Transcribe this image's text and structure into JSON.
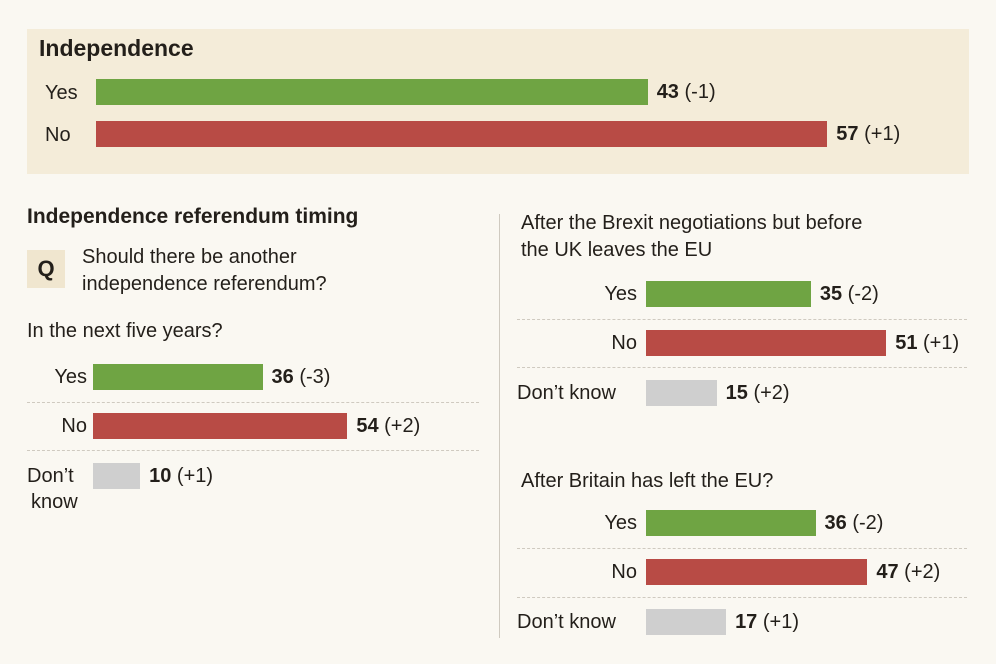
{
  "colors": {
    "yes": "#6fa443",
    "no": "#b84b45",
    "dont_know": "#cfcfcf"
  },
  "independence": {
    "title": "Independence",
    "rows": [
      {
        "label": "Yes",
        "value": 43,
        "change": "(-1)",
        "color": "yes"
      },
      {
        "label": "No",
        "value": 57,
        "change": "(+1)",
        "color": "no"
      }
    ]
  },
  "timing": {
    "title": "Independence referendum timing",
    "q_badge": "Q",
    "question_line1": "Should there be another",
    "question_line2": "independence referendum?"
  },
  "chart_data": [
    {
      "type": "bar",
      "title": "Independence",
      "categories": [
        "Yes",
        "No"
      ],
      "values": [
        43,
        57
      ],
      "changes": [
        "(-1)",
        "(+1)"
      ]
    },
    {
      "type": "bar",
      "title": "In the next five years?",
      "categories": [
        "Yes",
        "No",
        "Don't know"
      ],
      "values": [
        36,
        54,
        10
      ],
      "changes": [
        "(-3)",
        "(+2)",
        "(+1)"
      ]
    },
    {
      "type": "bar",
      "title": "After the Brexit negotiations but before the UK leaves the EU",
      "categories": [
        "Yes",
        "No",
        "Don’t know"
      ],
      "values": [
        35,
        51,
        15
      ],
      "changes": [
        "(-2)",
        "(+1)",
        "(+2)"
      ]
    },
    {
      "type": "bar",
      "title": "After Britain has left the EU?",
      "categories": [
        "Yes",
        "No",
        "Don’t know"
      ],
      "values": [
        36,
        47,
        17
      ],
      "changes": [
        "(-2)",
        "(+2)",
        "(+1)"
      ]
    }
  ],
  "five_years": {
    "subtitle": "In the next five years?",
    "rows": [
      {
        "label": "Yes",
        "value": 36,
        "change": "(-3)",
        "color": "yes"
      },
      {
        "label": "No",
        "value": 54,
        "change": "(+2)",
        "color": "no"
      },
      {
        "label_line1": "Don’t",
        "label_line2": "know",
        "value": 10,
        "change": "(+1)",
        "color": "dont_know"
      }
    ]
  },
  "before_leave": {
    "subtitle_line1": "After the Brexit negotiations but before",
    "subtitle_line2": "the UK leaves the EU",
    "rows": [
      {
        "label": "Yes",
        "value": 35,
        "change": "(-2)",
        "color": "yes"
      },
      {
        "label": "No",
        "value": 51,
        "change": "(+1)",
        "color": "no"
      },
      {
        "label": "Don’t know",
        "value": 15,
        "change": "(+2)",
        "color": "dont_know"
      }
    ]
  },
  "after_left": {
    "subtitle": "After Britain has left the EU?",
    "rows": [
      {
        "label": "Yes",
        "value": 36,
        "change": "(-2)",
        "color": "yes"
      },
      {
        "label": "No",
        "value": 47,
        "change": "(+2)",
        "color": "no"
      },
      {
        "label": "Don’t know",
        "value": 17,
        "change": "(+1)",
        "color": "dont_know"
      }
    ]
  }
}
